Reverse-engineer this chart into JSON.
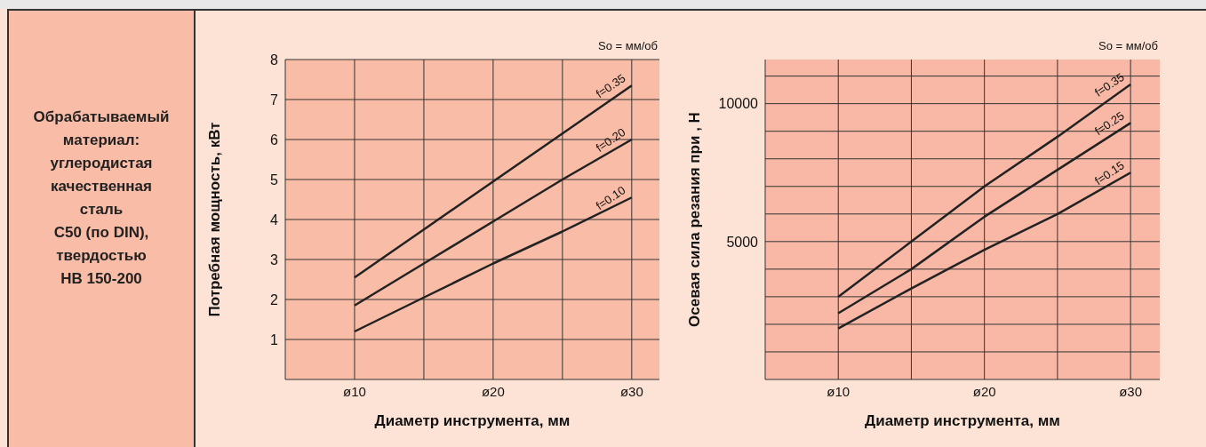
{
  "chart_data": [
    {
      "type": "other",
      "annotations": [
        "Обрабатываемый",
        "материал:",
        "углеродистая",
        "качественная",
        "сталь",
        "C50 (по DIN),",
        "твердостью",
        "HB 150-200"
      ]
    },
    {
      "type": "line",
      "xlabel": "Диаметр инструмента, мм",
      "ylabel": "Потребная мощность, кВт",
      "annotations": [
        "So = мм/об"
      ],
      "categories": [
        "ø10",
        null,
        "ø20",
        null,
        "ø30"
      ],
      "ylim": [
        0,
        8
      ],
      "yticks": [
        1,
        2,
        3,
        4,
        5,
        6,
        7,
        8
      ],
      "grid": true,
      "legend": false,
      "marker": "none",
      "line_style": "solid",
      "series": [
        {
          "name": "f=0.35",
          "color": "#222222",
          "values": [
            2.55,
            3.75,
            4.95,
            6.15,
            7.35
          ]
        },
        {
          "name": "f=0.20",
          "color": "#222222",
          "values": [
            1.85,
            2.9,
            3.95,
            5.0,
            6.0
          ]
        },
        {
          "name": "f=0.10",
          "color": "#222222",
          "values": [
            1.2,
            2.05,
            2.9,
            3.7,
            4.55
          ]
        }
      ]
    },
    {
      "type": "line",
      "xlabel": "Диаметр инструмента, мм",
      "ylabel": "Осевая сила резания при , Н",
      "annotations": [
        "So = мм/об"
      ],
      "categories": [
        "ø10",
        null,
        "ø20",
        null,
        "ø30"
      ],
      "ylim": [
        0,
        11600
      ],
      "yticks": [
        {
          "value": 1000,
          "label": null
        },
        {
          "value": 2000,
          "label": null
        },
        {
          "value": 3000,
          "label": null
        },
        {
          "value": 4000,
          "label": null
        },
        5000,
        {
          "value": 6000,
          "label": null
        },
        {
          "value": 7000,
          "label": null
        },
        {
          "value": 8000,
          "label": null
        },
        {
          "value": 9000,
          "label": null
        },
        10000,
        {
          "value": 11000,
          "label": null
        }
      ],
      "grid": true,
      "legend": false,
      "marker": "none",
      "line_style": "solid",
      "series": [
        {
          "name": "f=0.35",
          "color": "#222222",
          "values": [
            3000,
            5000,
            7000,
            8800,
            10700
          ]
        },
        {
          "name": "f=0.25",
          "color": "#222222",
          "values": [
            2400,
            4000,
            5900,
            7600,
            9300
          ]
        },
        {
          "name": "f=0.15",
          "color": "#222222",
          "values": [
            1850,
            3300,
            4700,
            6000,
            7500
          ]
        }
      ]
    }
  ]
}
